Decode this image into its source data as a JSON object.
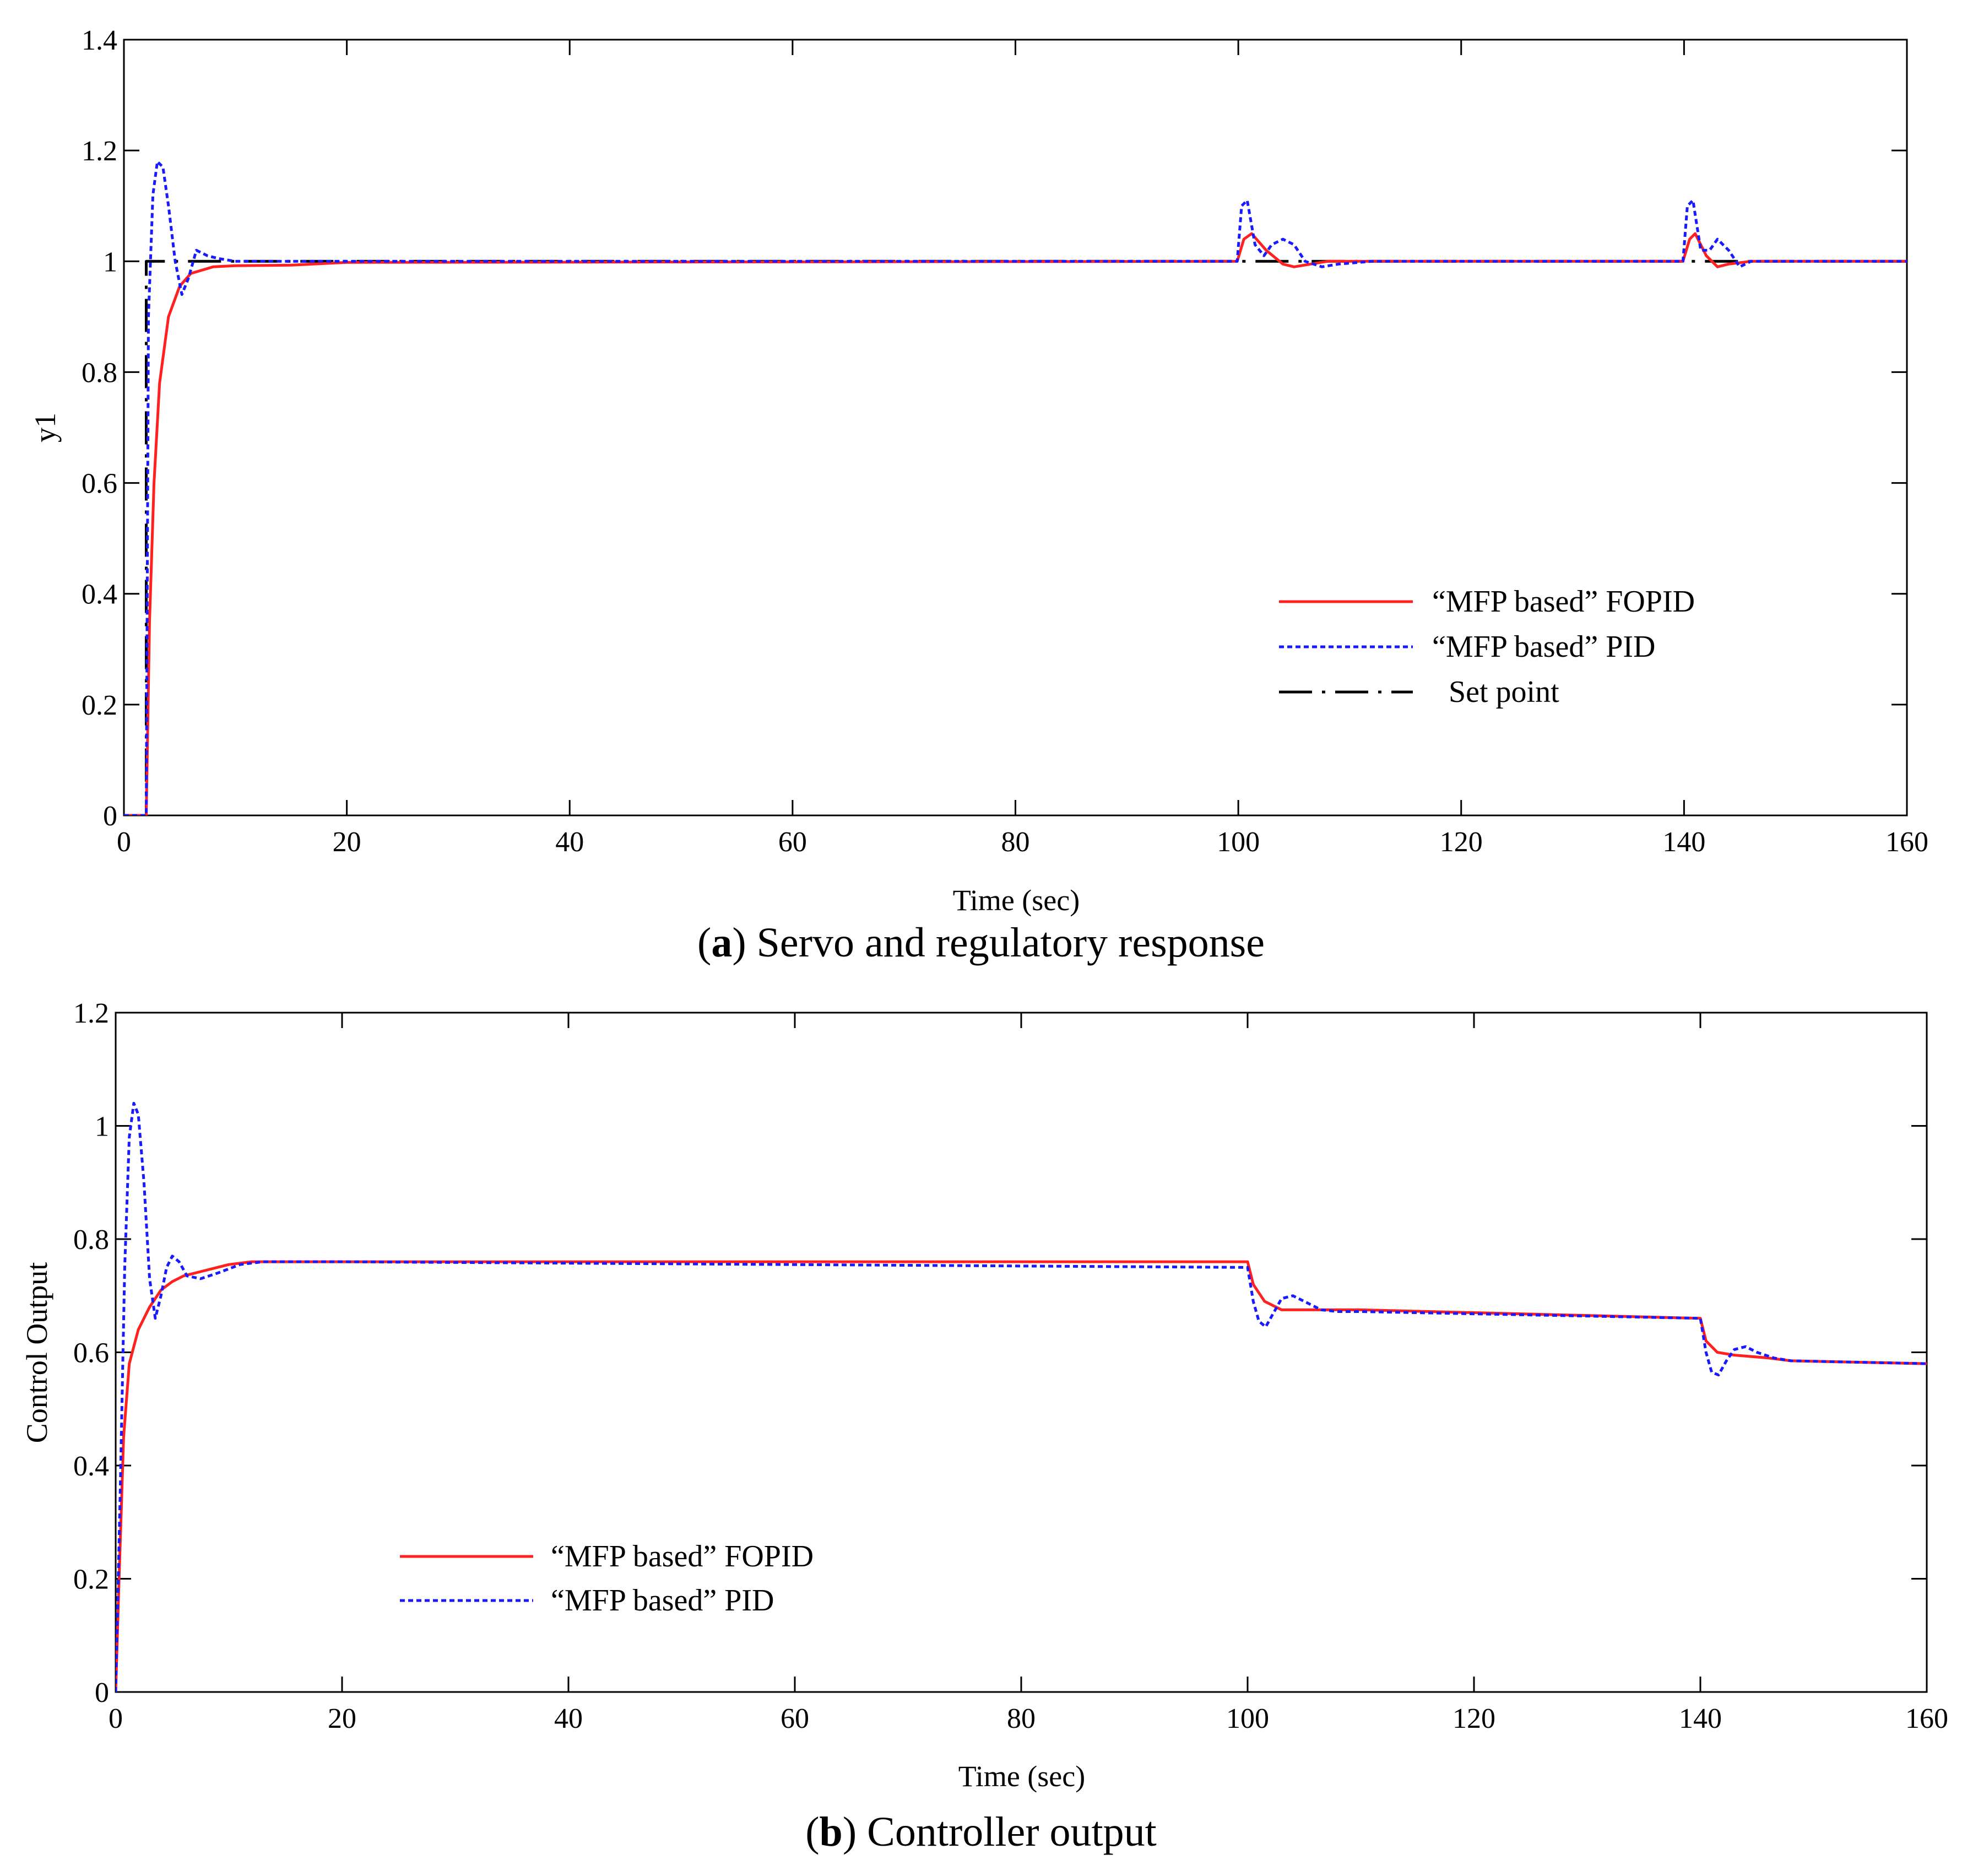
{
  "colors": {
    "fopid": "#ff2020",
    "pid": "#1a1aff",
    "setpoint": "#000000"
  },
  "chart_data": [
    {
      "type": "line",
      "id": "a",
      "caption_letter": "a",
      "caption_text": ") Servo and regulatory response",
      "caption_open": "(",
      "xlabel": "Time (sec)",
      "ylabel": "y1",
      "xlim": [
        0,
        160
      ],
      "ylim": [
        0,
        1.4
      ],
      "xticks": [
        0,
        20,
        40,
        60,
        80,
        100,
        120,
        140,
        160
      ],
      "yticks": [
        0,
        0.2,
        0.4,
        0.6,
        0.8,
        1,
        1.2,
        1.4
      ],
      "ytick_labels": [
        "0",
        "0.2",
        "0.4",
        "0.6",
        "0.8",
        "1",
        "1.2",
        "1.4"
      ],
      "legend_position": "lower-right",
      "series": [
        {
          "name": "“MFP based” FOPID",
          "style": "solid",
          "color_key": "fopid",
          "x": [
            0,
            2,
            2.3,
            2.7,
            3.2,
            4,
            5,
            6,
            8,
            10,
            15,
            20,
            99.9,
            100.5,
            101.2,
            102.5,
            104,
            105,
            106.5,
            108,
            110,
            139.9,
            140.5,
            141,
            142,
            143,
            144,
            146,
            160
          ],
          "y": [
            0,
            0,
            0.35,
            0.6,
            0.78,
            0.9,
            0.955,
            0.978,
            0.99,
            0.992,
            0.993,
            0.998,
            1,
            1.04,
            1.05,
            1.02,
            0.995,
            0.99,
            0.995,
            1,
            1,
            1,
            1.04,
            1.05,
            1.01,
            0.99,
            0.995,
            1,
            1
          ]
        },
        {
          "name": "“MFP based” PID",
          "style": "dotted",
          "color_key": "pid",
          "x": [
            0,
            2,
            2.2,
            2.6,
            3,
            3.5,
            4,
            4.6,
            5.2,
            5.8,
            6.5,
            7.5,
            8.5,
            10,
            12,
            20,
            99.9,
            100.3,
            100.8,
            101.5,
            102.3,
            103,
            104,
            105,
            106,
            107.5,
            109,
            112,
            139.9,
            140.3,
            140.8,
            141.5,
            142.3,
            143,
            144,
            145,
            146,
            160
          ],
          "y": [
            0,
            0,
            0.9,
            1.12,
            1.18,
            1.17,
            1.1,
            1,
            0.94,
            0.97,
            1.02,
            1.01,
            1.005,
            1,
            1,
            1,
            1,
            1.1,
            1.11,
            1.03,
            1.01,
            1.03,
            1.04,
            1.03,
            1.0,
            0.99,
            0.995,
            1,
            1,
            1.1,
            1.11,
            1.02,
            1.02,
            1.04,
            1.02,
            0.99,
            1.0,
            1
          ]
        },
        {
          "name": "Set point",
          "style": "dashdot",
          "color_key": "setpoint",
          "x": [
            0,
            2,
            2,
            160
          ],
          "y": [
            0,
            0,
            1,
            1
          ]
        }
      ]
    },
    {
      "type": "line",
      "id": "b",
      "caption_letter": "b",
      "caption_text": ") Controller output",
      "caption_open": "(",
      "xlabel": "Time (sec)",
      "ylabel": "Control Output",
      "xlim": [
        0,
        160
      ],
      "ylim": [
        0,
        1.2
      ],
      "xticks": [
        0,
        20,
        40,
        60,
        80,
        100,
        120,
        140,
        160
      ],
      "yticks": [
        0,
        0.2,
        0.4,
        0.6,
        0.8,
        1,
        1.2
      ],
      "ytick_labels": [
        "0",
        "0.2",
        "0.4",
        "0.6",
        "0.8",
        "1",
        "1.2"
      ],
      "legend_position": "lower-left",
      "series": [
        {
          "name": "“MFP based” FOPID",
          "style": "solid",
          "color_key": "fopid",
          "x": [
            0,
            0.3,
            0.7,
            1.2,
            2,
            3,
            4,
            5,
            6,
            8,
            10,
            12,
            20,
            100,
            100.5,
            101.5,
            103,
            106,
            110,
            140,
            140.5,
            141.5,
            143,
            146,
            148,
            160
          ],
          "y": [
            0,
            0.2,
            0.45,
            0.58,
            0.64,
            0.68,
            0.71,
            0.725,
            0.735,
            0.745,
            0.755,
            0.76,
            0.76,
            0.76,
            0.72,
            0.69,
            0.675,
            0.675,
            0.675,
            0.66,
            0.62,
            0.6,
            0.595,
            0.59,
            0.585,
            0.58
          ]
        },
        {
          "name": "“MFP based” PID",
          "style": "dotted",
          "color_key": "pid",
          "x": [
            0,
            0.4,
            0.8,
            1.2,
            1.6,
            2,
            2.5,
            3,
            3.5,
            4,
            4.5,
            5,
            5.6,
            6.3,
            7.5,
            9,
            11,
            13,
            20,
            100,
            100.5,
            101,
            101.6,
            102.3,
            103,
            104,
            105,
            106.5,
            108,
            110,
            140,
            140.5,
            141,
            141.6,
            142.3,
            143,
            144,
            145,
            146.5,
            148,
            160
          ],
          "y": [
            0,
            0.35,
            0.75,
            0.98,
            1.04,
            1.02,
            0.9,
            0.73,
            0.66,
            0.7,
            0.75,
            0.77,
            0.76,
            0.735,
            0.73,
            0.74,
            0.755,
            0.76,
            0.76,
            0.75,
            0.69,
            0.655,
            0.645,
            0.67,
            0.695,
            0.7,
            0.69,
            0.675,
            0.672,
            0.672,
            0.66,
            0.6,
            0.565,
            0.56,
            0.585,
            0.605,
            0.61,
            0.6,
            0.59,
            0.585,
            0.58
          ]
        }
      ]
    }
  ]
}
